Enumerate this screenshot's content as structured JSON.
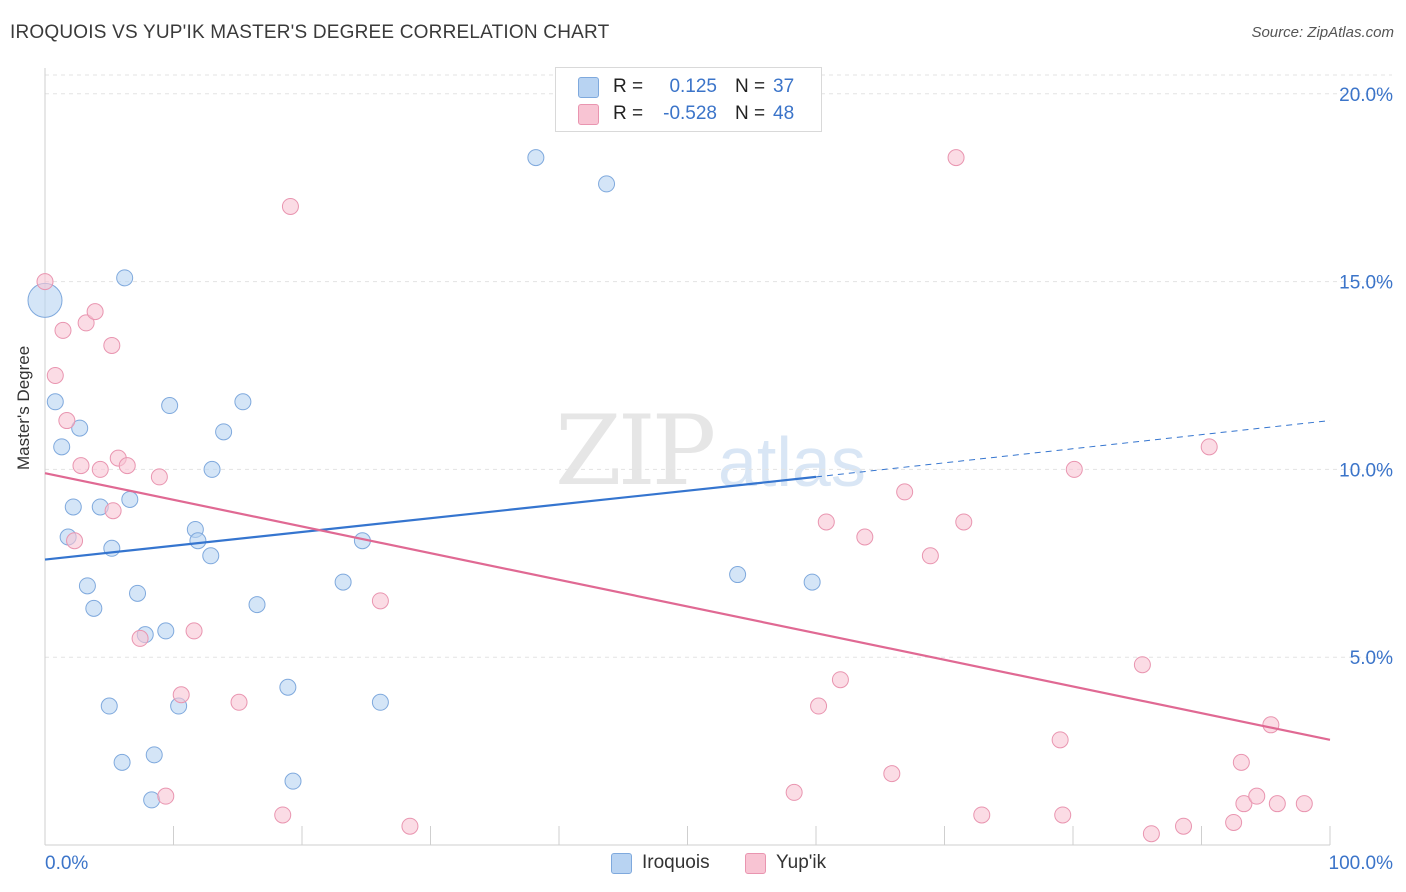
{
  "header": {
    "title": "IROQUOIS VS YUP'IK MASTER'S DEGREE CORRELATION CHART",
    "source": "Source: ZipAtlas.com"
  },
  "watermark": {
    "zip": "ZIP",
    "atlas": "atlas"
  },
  "legend": {
    "r_label": "R =",
    "n_label": "N =",
    "iroquois": {
      "r": "0.125",
      "n": "37"
    },
    "yupik": {
      "r": "-0.528",
      "n": "48"
    }
  },
  "colors": {
    "iroquois_fill": "#b8d3f2",
    "iroquois_stroke": "#7fa9dd",
    "iroquois_line": "#3575cf",
    "yupik_fill": "#f8c4d3",
    "yupik_stroke": "#e995b0",
    "yupik_line": "#e06993",
    "axis_text": "#3b74c9"
  },
  "chart_data": {
    "type": "scatter",
    "title": "IROQUOIS VS YUP'IK MASTER'S DEGREE CORRELATION CHART",
    "xlabel": "",
    "ylabel": "Master's Degree",
    "xlim": [
      0,
      100
    ],
    "ylim": [
      0,
      20.5
    ],
    "x_tick_labels": [
      "0.0%",
      "100.0%"
    ],
    "y_ticks": [
      5,
      10,
      15,
      20
    ],
    "y_tick_labels": [
      "5.0%",
      "10.0%",
      "15.0%",
      "20.0%"
    ],
    "series": [
      {
        "name": "Iroquois",
        "r": 0.125,
        "n": 37,
        "trend": {
          "x0": 0,
          "y0": 7.6,
          "x1": 60,
          "y1": 9.8,
          "dash_x1": 100,
          "dash_y1": 11.3
        },
        "points": [
          {
            "x": 0.0,
            "y": 14.5,
            "big": true
          },
          {
            "x": 0.8,
            "y": 11.8
          },
          {
            "x": 1.3,
            "y": 10.6
          },
          {
            "x": 1.8,
            "y": 8.2
          },
          {
            "x": 2.2,
            "y": 9.0
          },
          {
            "x": 2.7,
            "y": 11.1
          },
          {
            "x": 3.3,
            "y": 6.9
          },
          {
            "x": 3.8,
            "y": 6.3
          },
          {
            "x": 4.3,
            "y": 9.0
          },
          {
            "x": 5.0,
            "y": 3.7
          },
          {
            "x": 5.2,
            "y": 7.9
          },
          {
            "x": 6.0,
            "y": 2.2
          },
          {
            "x": 6.2,
            "y": 15.1
          },
          {
            "x": 6.6,
            "y": 9.2
          },
          {
            "x": 7.2,
            "y": 6.7
          },
          {
            "x": 7.8,
            "y": 5.6
          },
          {
            "x": 8.3,
            "y": 1.2
          },
          {
            "x": 8.5,
            "y": 2.4
          },
          {
            "x": 9.4,
            "y": 5.7
          },
          {
            "x": 9.7,
            "y": 11.7
          },
          {
            "x": 10.4,
            "y": 3.7
          },
          {
            "x": 11.7,
            "y": 8.4
          },
          {
            "x": 11.9,
            "y": 8.1
          },
          {
            "x": 12.9,
            "y": 7.7
          },
          {
            "x": 13.0,
            "y": 10.0
          },
          {
            "x": 13.9,
            "y": 11.0
          },
          {
            "x": 15.4,
            "y": 11.8
          },
          {
            "x": 16.5,
            "y": 6.4
          },
          {
            "x": 18.9,
            "y": 4.2
          },
          {
            "x": 19.3,
            "y": 1.7
          },
          {
            "x": 23.2,
            "y": 7.0
          },
          {
            "x": 24.7,
            "y": 8.1
          },
          {
            "x": 26.1,
            "y": 3.8
          },
          {
            "x": 38.2,
            "y": 18.3
          },
          {
            "x": 43.7,
            "y": 17.6
          },
          {
            "x": 53.9,
            "y": 7.2
          },
          {
            "x": 59.7,
            "y": 7.0
          }
        ]
      },
      {
        "name": "Yup'ik",
        "r": -0.528,
        "n": 48,
        "trend": {
          "x0": 0,
          "y0": 9.9,
          "x1": 100,
          "y1": 2.8
        },
        "points": [
          {
            "x": 0.0,
            "y": 15.0
          },
          {
            "x": 0.8,
            "y": 12.5
          },
          {
            "x": 1.4,
            "y": 13.7
          },
          {
            "x": 1.7,
            "y": 11.3
          },
          {
            "x": 2.3,
            "y": 8.1
          },
          {
            "x": 2.8,
            "y": 10.1
          },
          {
            "x": 3.2,
            "y": 13.9
          },
          {
            "x": 3.9,
            "y": 14.2
          },
          {
            "x": 4.3,
            "y": 10.0
          },
          {
            "x": 5.2,
            "y": 13.3
          },
          {
            "x": 5.3,
            "y": 8.9
          },
          {
            "x": 5.7,
            "y": 10.3
          },
          {
            "x": 6.4,
            "y": 10.1
          },
          {
            "x": 7.4,
            "y": 5.5
          },
          {
            "x": 8.9,
            "y": 9.8
          },
          {
            "x": 9.4,
            "y": 1.3
          },
          {
            "x": 10.6,
            "y": 4.0
          },
          {
            "x": 11.6,
            "y": 5.7
          },
          {
            "x": 15.1,
            "y": 3.8
          },
          {
            "x": 18.5,
            "y": 0.8
          },
          {
            "x": 19.1,
            "y": 17.0
          },
          {
            "x": 26.1,
            "y": 6.5
          },
          {
            "x": 28.4,
            "y": 0.5
          },
          {
            "x": 58.3,
            "y": 1.4
          },
          {
            "x": 60.2,
            "y": 3.7
          },
          {
            "x": 60.8,
            "y": 8.6
          },
          {
            "x": 61.9,
            "y": 4.4
          },
          {
            "x": 63.8,
            "y": 8.2
          },
          {
            "x": 65.9,
            "y": 1.9
          },
          {
            "x": 66.9,
            "y": 9.4
          },
          {
            "x": 68.9,
            "y": 7.7
          },
          {
            "x": 70.9,
            "y": 18.3
          },
          {
            "x": 71.5,
            "y": 8.6
          },
          {
            "x": 72.9,
            "y": 0.8
          },
          {
            "x": 79.0,
            "y": 2.8
          },
          {
            "x": 79.2,
            "y": 0.8
          },
          {
            "x": 80.1,
            "y": 10.0
          },
          {
            "x": 85.4,
            "y": 4.8
          },
          {
            "x": 86.1,
            "y": 0.3
          },
          {
            "x": 88.6,
            "y": 0.5
          },
          {
            "x": 90.6,
            "y": 10.6
          },
          {
            "x": 92.5,
            "y": 0.6
          },
          {
            "x": 93.1,
            "y": 2.2
          },
          {
            "x": 93.3,
            "y": 1.1
          },
          {
            "x": 94.3,
            "y": 1.3
          },
          {
            "x": 95.4,
            "y": 3.2
          },
          {
            "x": 95.9,
            "y": 1.1
          },
          {
            "x": 98.0,
            "y": 1.1
          }
        ]
      }
    ]
  }
}
